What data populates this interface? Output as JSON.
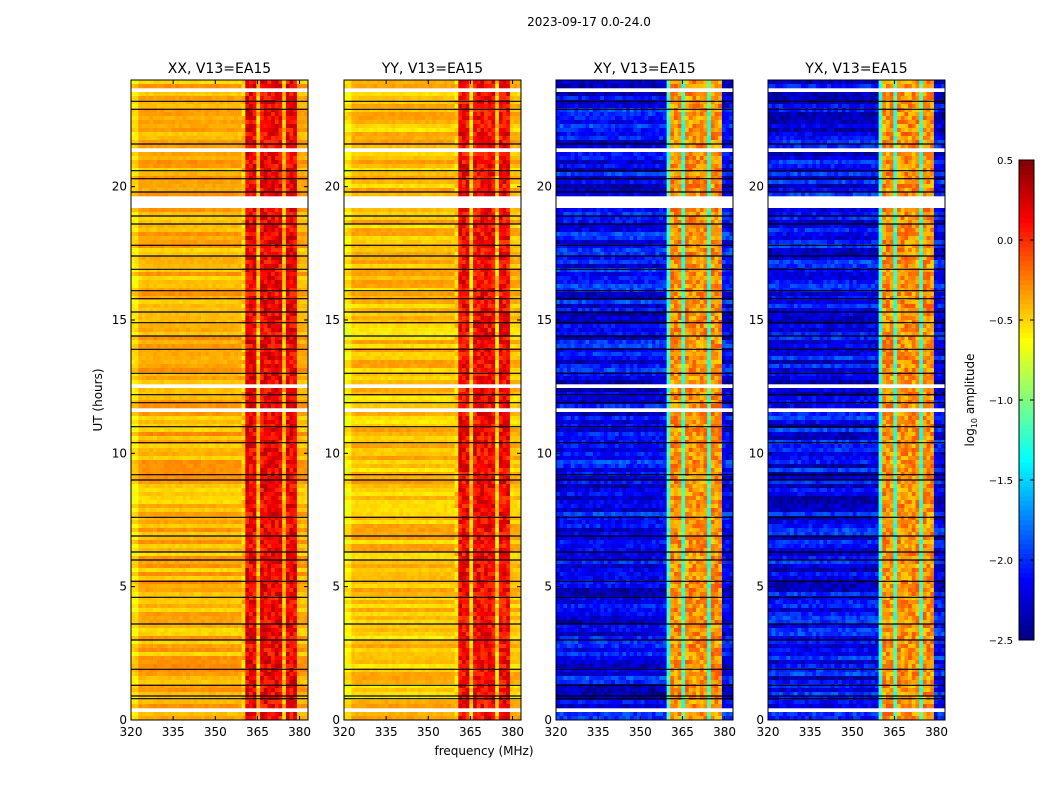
{
  "chart_data": {
    "type": "heatmap",
    "title": "2023-09-17 0.0-24.0",
    "xlabel": "frequency (MHz)",
    "ylabel": "UT (hours)",
    "xlim": [
      320,
      383
    ],
    "ylim": [
      0,
      24
    ],
    "xticks": [
      "320",
      "335",
      "350",
      "365",
      "380"
    ],
    "xtick_values": [
      320,
      335,
      350,
      365,
      380
    ],
    "yticks": [
      "0",
      "5",
      "10",
      "15",
      "20"
    ],
    "ytick_values": [
      0,
      5,
      10,
      15,
      20
    ],
    "colorbar": {
      "label": "log10 amplitude",
      "label_main": "log",
      "label_sub": "10",
      "label_rest": " amplitude",
      "range": [
        -2.5,
        0.5
      ],
      "ticks": [
        "0.5",
        "0.0",
        "−0.5",
        "−1.0",
        "−1.5",
        "−2.0",
        "−2.5"
      ],
      "tick_values": [
        0.5,
        0.0,
        -0.5,
        -1.0,
        -1.5,
        -2.0,
        -2.5
      ],
      "colormap": "jet"
    },
    "rfi_subbands_mhz": [
      [
        360.5,
        364.6
      ],
      [
        365.7,
        369.3
      ],
      [
        370.4,
        373.9
      ],
      [
        375.0,
        378.6
      ]
    ],
    "flagged_hours": [
      [
        19.2,
        19.7
      ],
      [
        21.3,
        21.5
      ],
      [
        11.5,
        11.7
      ],
      [
        0.35,
        0.5
      ],
      [
        23.6,
        23.7
      ],
      [
        12.5,
        12.6
      ]
    ],
    "black_line_hours": [
      23.2,
      22.9,
      21.6,
      20.6,
      20.3,
      19.8,
      18.9,
      18.6,
      17.8,
      17.4,
      16.9,
      16.1,
      15.8,
      15.3,
      14.9,
      14.4,
      13.9,
      13.0,
      12.2,
      11.9,
      11.0,
      10.4,
      9.2,
      9.0,
      7.6,
      6.9,
      6.3,
      6.0,
      5.2,
      4.6,
      3.6,
      3.0,
      1.9,
      1.3,
      0.9,
      0.8
    ],
    "panels": [
      {
        "title": "XX, V13=EA15",
        "base_log_amp": -0.4,
        "rfi_log_amp": 0.15,
        "gap_log_amp": -0.45
      },
      {
        "title": "YY, V13=EA15",
        "base_log_amp": -0.45,
        "rfi_log_amp": 0.12,
        "gap_log_amp": -0.5
      },
      {
        "title": "XY, V13=EA15",
        "base_log_amp": -2.15,
        "rfi_log_amp": -0.3,
        "gap_log_amp": -1.2
      },
      {
        "title": "YX, V13=EA15",
        "base_log_amp": -2.15,
        "rfi_log_amp": -0.3,
        "gap_log_amp": -1.2
      }
    ]
  }
}
